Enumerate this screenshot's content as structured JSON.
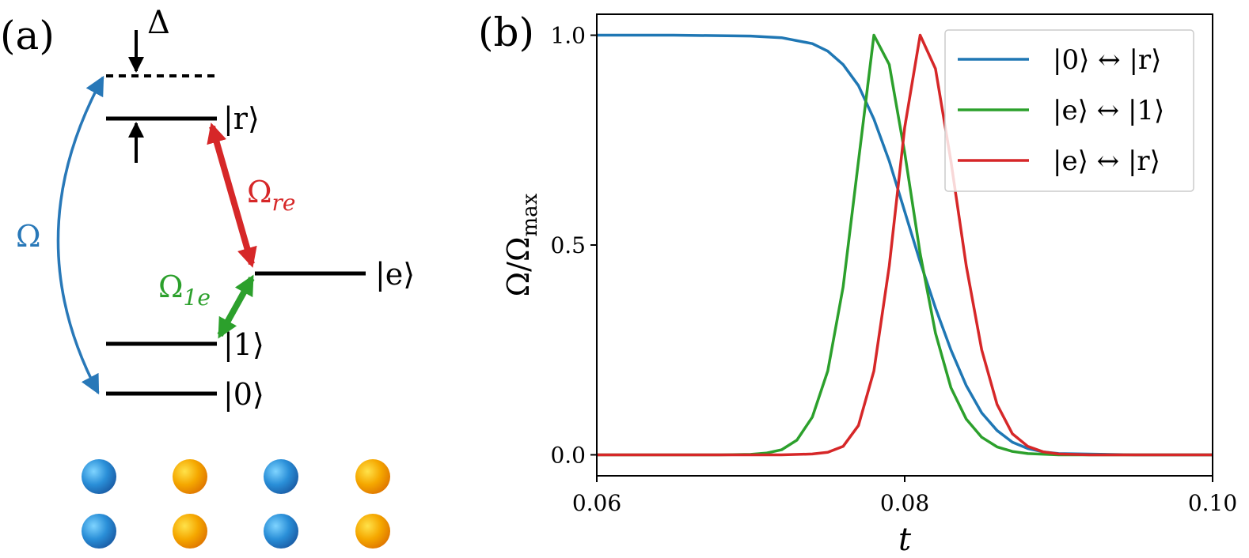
{
  "panel_a": {
    "label": "(a)",
    "detuning_label": "Δ",
    "levels": [
      {
        "key": "r",
        "label": "|r⟩"
      },
      {
        "key": "e",
        "label": "|e⟩"
      },
      {
        "key": "1",
        "label": "|1⟩"
      },
      {
        "key": "0",
        "label": "|0⟩"
      }
    ],
    "couplings": {
      "omega": {
        "label": "Ω",
        "color": "#2878b8"
      },
      "omega_re": {
        "label": "Ω",
        "sub": "re",
        "color": "#d62728"
      },
      "omega_1e": {
        "label": "Ω",
        "sub": "1e",
        "color": "#2ca02c"
      }
    },
    "atoms": {
      "rows": 2,
      "pattern": [
        "blue",
        "orange",
        "blue",
        "orange"
      ],
      "colors": {
        "blue": "#2a8fd8",
        "orange": "#f5a800"
      }
    }
  },
  "chart_data": {
    "type": "line",
    "panel_label": "(b)",
    "xlabel": "t",
    "ylabel": "Ω/Ω",
    "ylabel_sub": "max",
    "xlim": [
      0.06,
      0.1
    ],
    "ylim": [
      -0.05,
      1.05
    ],
    "xticks": [
      0.06,
      0.08,
      0.1
    ],
    "xtick_labels": [
      "0.06",
      "0.08",
      "0.10"
    ],
    "yticks": [
      0.0,
      0.5,
      1.0
    ],
    "ytick_labels": [
      "0.0",
      "0.5",
      "1.0"
    ],
    "grid": false,
    "legend_position": "top-right",
    "series": [
      {
        "name": "|0⟩ ↔ |r⟩",
        "color": "#1f77b4",
        "x": [
          0.06,
          0.065,
          0.07,
          0.072,
          0.074,
          0.075,
          0.076,
          0.077,
          0.078,
          0.079,
          0.08,
          0.081,
          0.082,
          0.083,
          0.084,
          0.085,
          0.086,
          0.087,
          0.088,
          0.089,
          0.09,
          0.095,
          0.1
        ],
        "y": [
          1.0,
          1.0,
          0.998,
          0.994,
          0.98,
          0.962,
          0.93,
          0.88,
          0.8,
          0.7,
          0.58,
          0.46,
          0.35,
          0.25,
          0.165,
          0.1,
          0.058,
          0.03,
          0.015,
          0.007,
          0.003,
          0.0,
          0.0
        ]
      },
      {
        "name": "|e⟩ ↔ |1⟩",
        "color": "#2ca02c",
        "x": [
          0.06,
          0.068,
          0.07,
          0.071,
          0.072,
          0.073,
          0.074,
          0.075,
          0.076,
          0.077,
          0.078,
          0.079,
          0.08,
          0.081,
          0.082,
          0.083,
          0.084,
          0.085,
          0.086,
          0.087,
          0.088,
          0.09,
          0.1
        ],
        "y": [
          0.0,
          0.0,
          0.001,
          0.004,
          0.012,
          0.035,
          0.09,
          0.2,
          0.4,
          0.7,
          1.0,
          0.93,
          0.72,
          0.48,
          0.29,
          0.16,
          0.085,
          0.042,
          0.019,
          0.008,
          0.003,
          0.0,
          0.0
        ]
      },
      {
        "name": "|e⟩ ↔ |r⟩",
        "color": "#d62728",
        "x": [
          0.06,
          0.072,
          0.074,
          0.075,
          0.076,
          0.077,
          0.078,
          0.079,
          0.08,
          0.081,
          0.082,
          0.083,
          0.084,
          0.085,
          0.086,
          0.087,
          0.088,
          0.089,
          0.09,
          0.092,
          0.1
        ],
        "y": [
          0.0,
          0.0,
          0.002,
          0.006,
          0.02,
          0.07,
          0.2,
          0.45,
          0.78,
          1.0,
          0.92,
          0.7,
          0.45,
          0.25,
          0.12,
          0.05,
          0.02,
          0.007,
          0.002,
          0.0,
          0.0
        ]
      }
    ]
  }
}
